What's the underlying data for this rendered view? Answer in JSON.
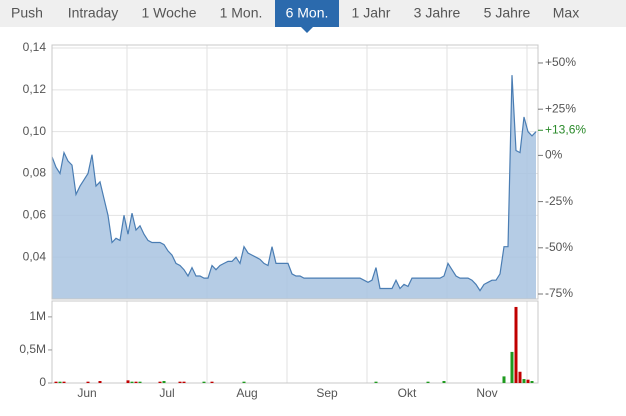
{
  "tabs": {
    "items": [
      "Push",
      "Intraday",
      "1 Woche",
      "1 Mon.",
      "6 Mon.",
      "1 Jahr",
      "3 Jahre",
      "5 Jahre",
      "Max"
    ],
    "selected": 4
  },
  "chart_data": {
    "type": "line",
    "color": "#4a7db3",
    "fill_color": "#a8c3e0",
    "values": [
      0.088,
      0.083,
      0.08,
      0.09,
      0.086,
      0.084,
      0.07,
      0.074,
      0.077,
      0.08,
      0.089,
      0.074,
      0.076,
      0.068,
      0.06,
      0.047,
      0.049,
      0.048,
      0.06,
      0.051,
      0.061,
      0.053,
      0.055,
      0.051,
      0.048,
      0.047,
      0.047,
      0.047,
      0.046,
      0.043,
      0.041,
      0.037,
      0.036,
      0.034,
      0.031,
      0.035,
      0.031,
      0.031,
      0.03,
      0.03,
      0.036,
      0.034,
      0.036,
      0.037,
      0.038,
      0.038,
      0.04,
      0.037,
      0.045,
      0.042,
      0.041,
      0.04,
      0.039,
      0.037,
      0.036,
      0.045,
      0.037,
      0.037,
      0.037,
      0.037,
      0.032,
      0.031,
      0.031,
      0.03,
      0.03,
      0.03,
      0.03,
      0.03,
      0.03,
      0.03,
      0.03,
      0.03,
      0.03,
      0.03,
      0.03,
      0.03,
      0.03,
      0.03,
      0.029,
      0.028,
      0.029,
      0.035,
      0.025,
      0.025,
      0.025,
      0.025,
      0.029,
      0.025,
      0.027,
      0.026,
      0.03,
      0.03,
      0.03,
      0.03,
      0.03,
      0.03,
      0.03,
      0.03,
      0.031,
      0.037,
      0.034,
      0.031,
      0.03,
      0.03,
      0.03,
      0.029,
      0.027,
      0.024,
      0.027,
      0.028,
      0.029,
      0.029,
      0.032,
      0.045,
      0.045,
      0.127,
      0.091,
      0.09,
      0.107,
      0.1,
      0.098,
      0.1
    ],
    "xlim": [
      0,
      121
    ],
    "xticks": [
      {
        "value": 8.75,
        "label": "Jun"
      },
      {
        "value": 28.75,
        "label": "Jul"
      },
      {
        "value": 48.75,
        "label": "Aug"
      },
      {
        "value": 68.75,
        "label": "Sep"
      },
      {
        "value": 88.75,
        "label": "Okt"
      },
      {
        "value": 108.75,
        "label": "Nov"
      }
    ],
    "ylim": [
      0.02,
      0.14
    ],
    "yticks": [
      {
        "value": 0.04,
        "label": "0,04"
      },
      {
        "value": 0.06,
        "label": "0,06"
      },
      {
        "value": 0.08,
        "label": "0,08"
      },
      {
        "value": 0.1,
        "label": "0,10"
      },
      {
        "value": 0.12,
        "label": "0,12"
      },
      {
        "value": 0.14,
        "label": "0,14"
      }
    ],
    "y2lim": [
      -77.7,
      58.1
    ],
    "y2ticks": [
      {
        "value": 50,
        "label": "+50%"
      },
      {
        "value": 25,
        "label": "+25%"
      },
      {
        "value": 0,
        "label": "0%"
      },
      {
        "value": -25,
        "label": "-25%"
      },
      {
        "value": -50,
        "label": "-50%"
      },
      {
        "value": -75,
        "label": "-75%"
      }
    ],
    "current": {
      "value": 13.6,
      "label": "+13,6%",
      "color": "#2a8a2a"
    },
    "grid": true,
    "volume": {
      "ylim": [
        0,
        1240000
      ],
      "yticks": [
        0,
        {
          "value": 500000,
          "label": "0,5M"
        },
        {
          "value": 1000000,
          "label": "1M"
        }
      ],
      "series": [
        {
          "color": "#1f9a1f",
          "x": [
            2,
            20,
            22,
            28,
            38,
            48,
            81,
            94,
            98,
            113,
            115,
            118,
            120
          ],
          "values": [
            20000,
            20000,
            20000,
            30000,
            20000,
            20000,
            20000,
            20000,
            30000,
            100000,
            470000,
            60000,
            30000
          ]
        },
        {
          "color": "#c00000",
          "x": [
            1,
            3,
            9,
            12,
            19,
            21,
            27,
            32,
            33,
            40,
            116,
            117,
            119
          ],
          "values": [
            20000,
            20000,
            20000,
            30000,
            40000,
            20000,
            20000,
            20000,
            20000,
            20000,
            1150000,
            170000,
            50000
          ]
        }
      ]
    }
  }
}
